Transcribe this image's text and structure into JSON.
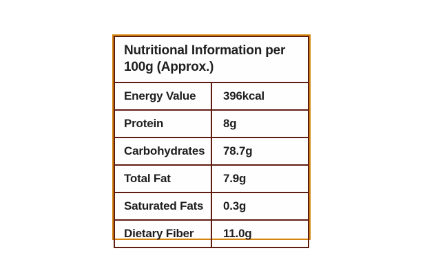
{
  "nutrition_table": {
    "title": "Nutritional Information per 100g (Approx.)",
    "rows": [
      {
        "label": "Energy Value",
        "value": "396kcal"
      },
      {
        "label": "Protein",
        "value": "8g"
      },
      {
        "label": "Carbohydrates",
        "value": "78.7g"
      },
      {
        "label": "Total Fat",
        "value": "7.9g"
      },
      {
        "label": "Saturated Fats",
        "value": "0.3g"
      },
      {
        "label": "Dietary Fiber",
        "value": "11.0g"
      }
    ],
    "colors": {
      "page_bg": "#ffffff",
      "table_bg": "#fefefe",
      "outer_border": "#d4830e",
      "inner_border": "#5e1d10",
      "text_color": "#1e1e1e"
    }
  }
}
